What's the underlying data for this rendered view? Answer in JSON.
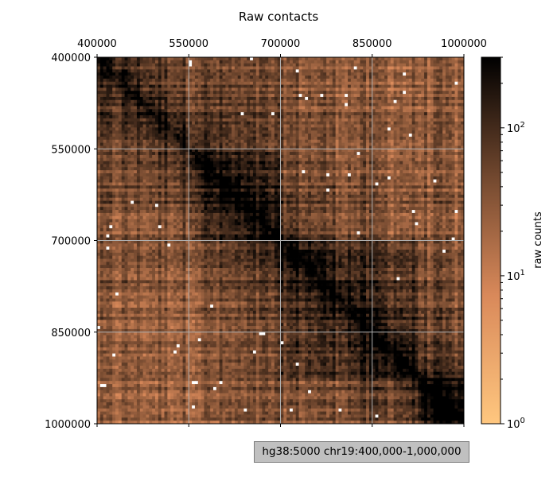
{
  "chart_data": {
    "type": "heatmap",
    "title": "Raw contacts",
    "x_tick_labels": [
      "400000",
      "550000",
      "700000",
      "850000",
      "1000000"
    ],
    "y_tick_labels": [
      "400000",
      "550000",
      "700000",
      "850000",
      "1000000"
    ],
    "x_range": [
      400000,
      1000000
    ],
    "y_range": [
      400000,
      1000000
    ],
    "x_ticks_position": "top",
    "bin_size": 5000,
    "grid": true,
    "colormap": "copper_r",
    "colorbar": {
      "label": "raw counts",
      "scale": "log",
      "range": [
        1,
        300
      ],
      "ticks": [
        {
          "value": 1,
          "label": "10",
          "exp": "0"
        },
        {
          "value": 10,
          "label": "10",
          "exp": "1"
        },
        {
          "value": 100,
          "label": "10",
          "exp": "2"
        }
      ]
    },
    "features": {
      "diagonal_max": 300,
      "background_min": 2,
      "tad_boundaries": [
        550000,
        700000,
        925000
      ],
      "cluster_region": [
        925000,
        1000000
      ]
    }
  },
  "region_label": "hg38:5000 chr19:400,000-1,000,000",
  "colors": {
    "colormap_low": "#ffc77f",
    "colormap_high": "#000000",
    "grid": "#b0b0b0",
    "label_box_bg": "#c0c0c0"
  }
}
